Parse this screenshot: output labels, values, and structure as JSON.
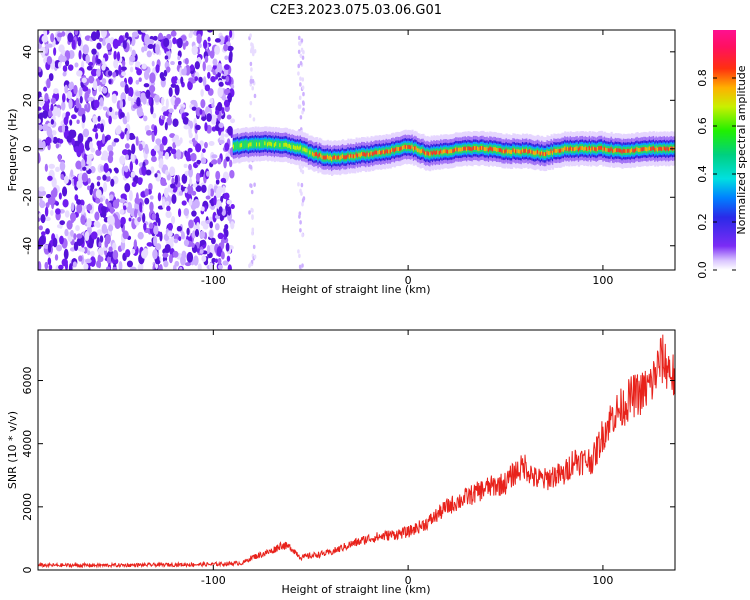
{
  "title": "C2E3.2023.075.03.06.G01",
  "colors": {
    "snr_line": "#e8221b",
    "noise_purple": "#6f1cf0",
    "axis": "#000000"
  },
  "colorbar": {
    "label": "Normalized spectral amplitude",
    "ticks": [
      "0.0",
      "0.2",
      "0.4",
      "0.6",
      "0.8"
    ]
  },
  "chart_data": [
    {
      "type": "heatmap",
      "title": "",
      "xlabel": "Height of straight line (km)",
      "ylabel": "Frequency (Hz)",
      "xlim": [
        -190,
        137
      ],
      "ylim": [
        -50,
        49
      ],
      "xticks": [
        "-100",
        "0",
        "100"
      ],
      "yticks": [
        "-40",
        "-20",
        "0",
        "20",
        "40"
      ],
      "zlim": [
        0.0,
        1.0
      ],
      "colormap": "rainbow (purple-blue-cyan-green-yellow-red-magenta)",
      "signal_track": {
        "x": [
          -90,
          -80,
          -70,
          -60,
          -55,
          -50,
          -45,
          -40,
          -30,
          -20,
          -10,
          0,
          10,
          20,
          30,
          40,
          50,
          60,
          70,
          80,
          90,
          100,
          110,
          120,
          137
        ],
        "y": [
          1,
          2,
          2,
          1,
          0,
          -2,
          -3,
          -4,
          -3,
          -2,
          -1,
          1,
          -2,
          -1,
          0,
          0,
          -1,
          -1,
          -2,
          0,
          0,
          0,
          -1,
          0,
          0
        ]
      },
      "noise_region_x": [
        -190,
        -90
      ]
    },
    {
      "type": "line",
      "title": "",
      "xlabel": "Height of straight line (km)",
      "ylabel": "SNR (10 * v/v)",
      "xlim": [
        -190,
        137
      ],
      "ylim": [
        0,
        7600
      ],
      "xticks": [
        "-100",
        "0",
        "100"
      ],
      "yticks": [
        "0",
        "2000",
        "4000",
        "6000"
      ],
      "series": [
        {
          "x": [
            -190,
            -150,
            -100,
            -85,
            -80,
            -75,
            -70,
            -65,
            -60,
            -55,
            -50,
            -40,
            -30,
            -20,
            -10,
            0,
            10,
            20,
            30,
            40,
            50,
            55,
            60,
            65,
            70,
            75,
            80,
            85,
            90,
            95,
            100,
            105,
            110,
            115,
            120,
            125,
            130,
            135,
            137
          ],
          "y": [
            150,
            150,
            180,
            220,
            400,
            500,
            600,
            800,
            700,
            400,
            450,
            550,
            800,
            1000,
            1100,
            1200,
            1500,
            2000,
            2300,
            2600,
            2750,
            3100,
            3300,
            2900,
            2850,
            3000,
            3000,
            3500,
            3450,
            3500,
            4300,
            4900,
            5150,
            5500,
            5600,
            5900,
            6700,
            6300,
            6000
          ]
        }
      ]
    }
  ]
}
